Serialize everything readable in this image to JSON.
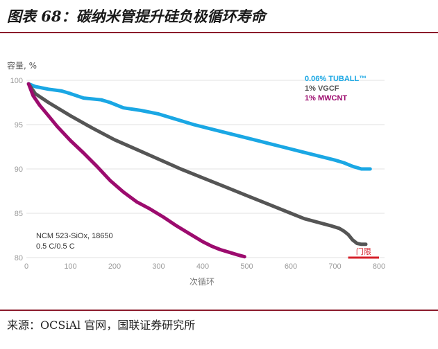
{
  "figure": {
    "title": "图表 68：碳纳米管提升硅负极循环寿命",
    "source": "来源：OCSiAl 官网，国联证券研究所"
  },
  "chart_data": {
    "type": "line",
    "ylabel": "容量, %",
    "xlabel": "次循环",
    "xlim": [
      0,
      800
    ],
    "ylim": [
      80,
      100
    ],
    "xticks": [
      "0",
      "100",
      "200",
      "300",
      "400",
      "500",
      "600",
      "700",
      "800"
    ],
    "yticks": [
      "80",
      "85",
      "90",
      "95",
      "100"
    ],
    "note_line1": "NCM 523-SiOx, 18650",
    "note_line2": "0.5 C/0.5 C",
    "threshold": {
      "label": "门限",
      "value": 80,
      "x_from": 730,
      "x_to": 800,
      "color": "#d6202a"
    },
    "series": [
      {
        "name": "0.06% TUBALL™",
        "color": "#1aa7e4",
        "x": [
          5,
          20,
          50,
          80,
          100,
          130,
          170,
          190,
          220,
          260,
          300,
          340,
          380,
          420,
          460,
          500,
          540,
          580,
          620,
          660,
          700,
          720,
          740,
          760,
          780
        ],
        "y": [
          99.6,
          99.3,
          99.0,
          98.8,
          98.5,
          98.0,
          97.8,
          97.5,
          96.9,
          96.6,
          96.2,
          95.6,
          95.0,
          94.5,
          94.0,
          93.5,
          93.0,
          92.5,
          92.0,
          91.5,
          91.0,
          90.7,
          90.3,
          90.0,
          90.0
        ]
      },
      {
        "name": "1% VGCF",
        "color": "#555555",
        "x": [
          5,
          20,
          50,
          100,
          150,
          200,
          250,
          300,
          350,
          400,
          450,
          500,
          550,
          600,
          630,
          660,
          690,
          710,
          720,
          730,
          740,
          750,
          760,
          770
        ],
        "y": [
          99.6,
          98.5,
          97.5,
          96.0,
          94.6,
          93.3,
          92.2,
          91.1,
          90.0,
          89.0,
          88.0,
          87.0,
          86.0,
          85.0,
          84.4,
          84.0,
          83.6,
          83.3,
          83.0,
          82.6,
          82.0,
          81.6,
          81.5,
          81.5
        ]
      },
      {
        "name": "1% MWCNT",
        "color": "#9c0b6e",
        "x": [
          5,
          15,
          30,
          50,
          70,
          100,
          130,
          160,
          190,
          220,
          250,
          280,
          310,
          340,
          360,
          380,
          400,
          420,
          440,
          460,
          480,
          495
        ],
        "y": [
          99.6,
          98.3,
          97.2,
          96.0,
          94.8,
          93.2,
          91.8,
          90.3,
          88.7,
          87.4,
          86.3,
          85.5,
          84.6,
          83.6,
          83.0,
          82.4,
          81.8,
          81.3,
          80.9,
          80.6,
          80.3,
          80.1
        ]
      }
    ]
  }
}
